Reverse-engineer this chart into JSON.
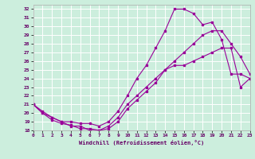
{
  "bg_color": "#cceedd",
  "line_color": "#990099",
  "grid_color": "#ffffff",
  "xmin": 0,
  "xmax": 23,
  "ymin": 18,
  "ymax": 32.5,
  "line1_x": [
    0,
    1,
    2,
    3,
    4,
    5,
    6,
    7,
    8,
    9,
    10,
    11,
    12,
    13,
    14,
    15,
    16,
    17,
    18,
    19,
    20,
    21,
    22,
    23
  ],
  "line1_y": [
    21.0,
    20.0,
    19.2,
    18.8,
    18.6,
    18.2,
    18.2,
    18.0,
    18.2,
    19.0,
    20.5,
    21.5,
    22.5,
    23.5,
    25.0,
    25.5,
    25.5,
    26.0,
    26.5,
    27.0,
    27.5,
    27.5,
    23.0,
    24.0
  ],
  "line2_x": [
    0,
    1,
    2,
    3,
    4,
    5,
    6,
    7,
    8,
    9,
    10,
    11,
    12,
    13,
    14,
    15,
    16,
    17,
    18,
    19,
    20,
    21,
    22,
    23
  ],
  "line2_y": [
    21.0,
    20.2,
    19.5,
    19.0,
    19.0,
    18.8,
    18.8,
    18.5,
    19.0,
    20.2,
    22.0,
    24.0,
    25.5,
    27.5,
    29.5,
    32.0,
    32.0,
    31.5,
    30.2,
    30.5,
    28.5,
    24.5,
    24.5,
    24.0
  ],
  "line3_x": [
    0,
    1,
    2,
    3,
    4,
    5,
    6,
    7,
    8,
    9,
    10,
    11,
    12,
    13,
    14,
    15,
    16,
    17,
    18,
    19,
    20,
    21,
    22,
    23
  ],
  "line3_y": [
    21.0,
    20.0,
    19.5,
    19.0,
    18.5,
    18.5,
    18.0,
    18.0,
    18.5,
    19.5,
    21.0,
    22.0,
    23.0,
    24.0,
    25.0,
    26.0,
    27.0,
    28.0,
    29.0,
    29.5,
    29.5,
    28.0,
    26.5,
    24.5
  ],
  "yticks": [
    18,
    19,
    20,
    21,
    22,
    23,
    24,
    25,
    26,
    27,
    28,
    29,
    30,
    31,
    32
  ],
  "xticks": [
    0,
    1,
    2,
    3,
    4,
    5,
    6,
    7,
    8,
    9,
    10,
    11,
    12,
    13,
    14,
    15,
    16,
    17,
    18,
    19,
    20,
    21,
    22,
    23
  ],
  "xlabel": "Windchill (Refroidissement éolien,°C)"
}
